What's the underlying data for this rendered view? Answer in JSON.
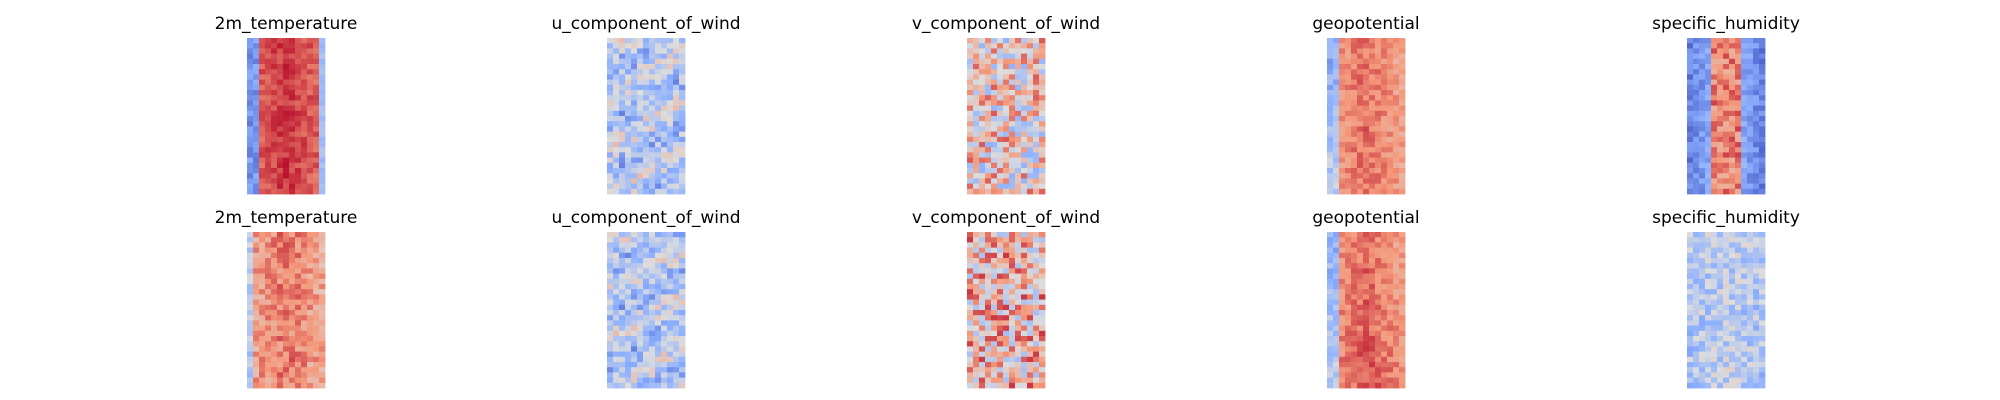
{
  "chart_data": [
    {
      "type": "heatmap",
      "title": "2m_temperature",
      "colormap": "coolwarm",
      "row": 1,
      "col": 1
    },
    {
      "type": "heatmap",
      "title": "u_component_of_wind",
      "colormap": "coolwarm",
      "row": 1,
      "col": 2
    },
    {
      "type": "heatmap",
      "title": "v_component_of_wind",
      "colormap": "coolwarm",
      "row": 1,
      "col": 3
    },
    {
      "type": "heatmap",
      "title": "geopotential",
      "colormap": "coolwarm",
      "row": 1,
      "col": 4
    },
    {
      "type": "heatmap",
      "title": "specific_humidity",
      "colormap": "coolwarm",
      "row": 1,
      "col": 5
    },
    {
      "type": "heatmap",
      "title": "2m_temperature",
      "colormap": "coolwarm",
      "row": 2,
      "col": 1
    },
    {
      "type": "heatmap",
      "title": "u_component_of_wind",
      "colormap": "coolwarm",
      "row": 2,
      "col": 2
    },
    {
      "type": "heatmap",
      "title": "v_component_of_wind",
      "colormap": "coolwarm",
      "row": 2,
      "col": 3
    },
    {
      "type": "heatmap",
      "title": "geopotential",
      "colormap": "coolwarm",
      "row": 2,
      "col": 4
    },
    {
      "type": "heatmap",
      "title": "specific_humidity",
      "colormap": "coolwarm",
      "row": 2,
      "col": 5
    }
  ]
}
